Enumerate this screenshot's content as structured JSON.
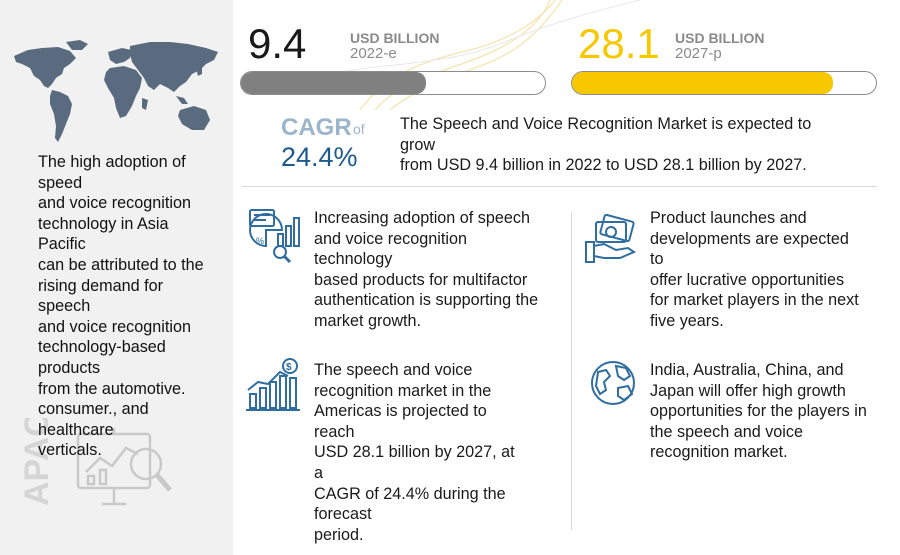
{
  "left_panel": {
    "description": "The high adoption of\nspeed\nand voice recognition\ntechnology in Asia\nPacific\ncan be attributed to the\nrising demand for\nspeech\nand voice recognition\ntechnology-based\nproducts\nfrom the automotive.\nconsumer., and\nhealthcare\nverticals.",
    "region_label": "APAC",
    "map_icon": "world-map",
    "illustration_icon": "analytics-board-magnifier-icon"
  },
  "metrics": {
    "start": {
      "value": "9.4",
      "unit": "USD BILLION",
      "year": "2022-e",
      "fill_fraction": 0.61,
      "fill_color": "#808080"
    },
    "end": {
      "value": "28.1",
      "unit": "USD BILLION",
      "year": "2027-p",
      "fill_fraction": 0.86,
      "fill_color": "#f7c800"
    }
  },
  "cagr": {
    "label": "CAGR",
    "of": "of",
    "value": "24.4%"
  },
  "summary": "The Speech and Voice Recognition Market is expected to\ngrow\nfrom USD 9.4 billion in 2022 to USD 28.1 billion by 2027.",
  "insights": [
    {
      "icon": "analytics-report-icon",
      "text": "Increasing adoption of speech\nand voice recognition\ntechnology\nbased products for multifactor\nauthentication is supporting the\nmarket growth."
    },
    {
      "icon": "money-in-hand-icon",
      "text": "Product launches and\ndevelopments are expected\nto\noffer lucrative opportunities\nfor market players in the next\nfive years."
    },
    {
      "icon": "growth-chart-dollar-icon",
      "text": "The speech and voice\nrecognition market in the\nAmericas is projected to\nreach\nUSD 28.1 billion by 2027, at\na\nCAGR of 24.4% during the\nforecast\nperiod."
    },
    {
      "icon": "globe-icon",
      "text": "India, Australia, China, and\nJapan will offer high growth\nopportunities for the players in\nthe speech and voice\nrecognition market."
    }
  ],
  "colors": {
    "accent_yellow": "#f7c800",
    "accent_blue": "#1e5a8c",
    "muted_blue": "#9bb5cc",
    "icon_blue": "#2f6e9e",
    "panel_gray": "#f1f1f1"
  }
}
